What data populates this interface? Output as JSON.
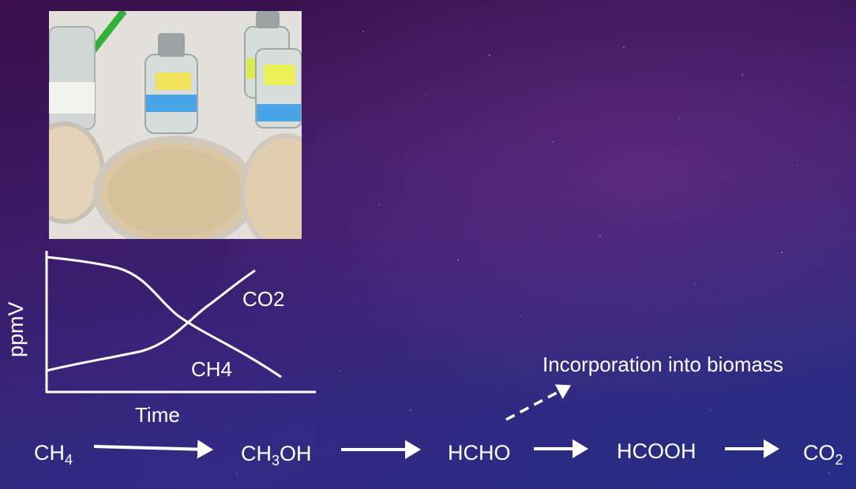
{
  "graph": {
    "y_label": "ppmV",
    "x_label": "Time",
    "curve1_label": "CO2",
    "curve2_label": "CH4"
  },
  "pathway": {
    "step1": {
      "main": "CH",
      "sub": "4"
    },
    "step2": {
      "pre": "CH",
      "sub": "3",
      "post": "OH"
    },
    "step3": "HCHO",
    "step4": "HCOOH",
    "step5": {
      "main": "CO",
      "sub": "2"
    },
    "branch_label": "Incorporation into biomass"
  },
  "colors": {
    "text": "#ffffff",
    "bg_top": "#3a0f4a",
    "bg_bottom": "#262d86"
  },
  "icons": {
    "photo": "lab-culture-bottles-and-petri-dishes"
  }
}
